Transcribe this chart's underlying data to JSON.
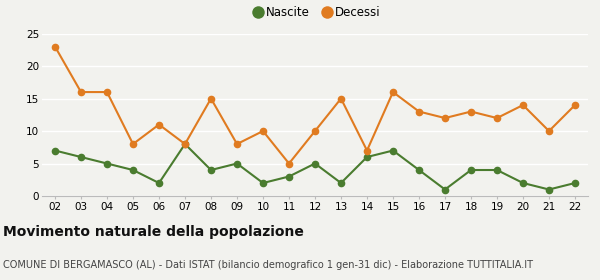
{
  "years": [
    "02",
    "03",
    "04",
    "05",
    "06",
    "07",
    "08",
    "09",
    "10",
    "11",
    "12",
    "13",
    "14",
    "15",
    "16",
    "17",
    "18",
    "19",
    "20",
    "21",
    "22"
  ],
  "nascite": [
    7,
    6,
    5,
    4,
    2,
    8,
    4,
    5,
    2,
    3,
    5,
    2,
    6,
    7,
    4,
    1,
    4,
    4,
    2,
    1,
    2
  ],
  "decessi": [
    23,
    16,
    16,
    8,
    11,
    8,
    15,
    8,
    10,
    5,
    10,
    15,
    7,
    16,
    13,
    12,
    13,
    12,
    14,
    10,
    14
  ],
  "nascite_color": "#4a7c2f",
  "decessi_color": "#e07b20",
  "bg_color": "#f2f2ee",
  "title": "Movimento naturale della popolazione",
  "subtitle": "COMUNE DI BERGAMASCO (AL) - Dati ISTAT (bilancio demografico 1 gen-31 dic) - Elaborazione TUTTITALIA.IT",
  "legend_nascite": "Nascite",
  "legend_decessi": "Decessi",
  "ylim": [
    0,
    25
  ],
  "yticks": [
    0,
    5,
    10,
    15,
    20,
    25
  ],
  "title_fontsize": 10,
  "subtitle_fontsize": 7,
  "marker": "o",
  "linewidth": 1.5,
  "markersize": 4.5
}
